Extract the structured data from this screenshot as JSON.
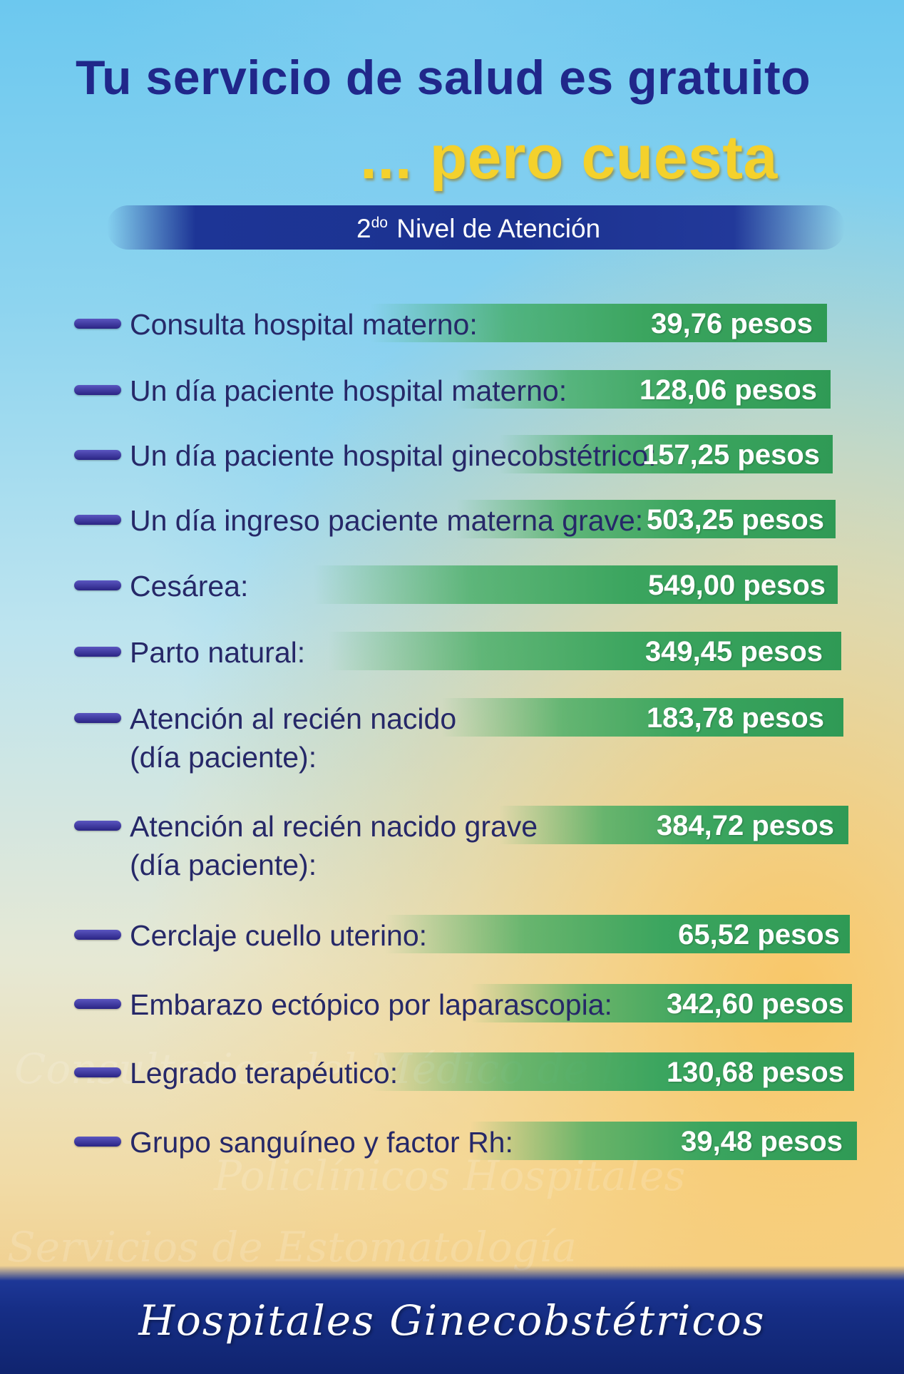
{
  "title": {
    "line1": "Tu servicio de salud es gratuito",
    "line2": "... pero cuesta"
  },
  "level": {
    "ordinal": "2",
    "suffix": "do",
    "text": "Nivel de Atención"
  },
  "items": [
    {
      "label": "Consulta hospital materno:",
      "price": "39,76 pesos"
    },
    {
      "label": "Un día paciente hospital materno:",
      "price": "128,06 pesos"
    },
    {
      "label": "Un día paciente hospital ginecobstétrico:",
      "price": "157,25 pesos"
    },
    {
      "label": "Un día ingreso paciente materna grave:",
      "price": "503,25 pesos"
    },
    {
      "label": "Cesárea:",
      "price": "549,00 pesos"
    },
    {
      "label": "Parto natural:",
      "price": "349,45 pesos"
    },
    {
      "label": "Atención al recién nacido",
      "label2": "(día paciente):",
      "price": "183,78 pesos"
    },
    {
      "label": "Atención al recién nacido grave",
      "label2": "(día paciente):",
      "price": "384,72 pesos"
    },
    {
      "label": "Cerclaje cuello uterino:",
      "price": "65,52 pesos"
    },
    {
      "label": "Embarazo ectópico por laparascopia:",
      "price": "342,60 pesos"
    },
    {
      "label": "Legrado terapéutico:",
      "price": "130,68 pesos"
    },
    {
      "label": "Grupo sanguíneo y factor Rh:",
      "price": "39,48 pesos"
    }
  ],
  "watermark": {
    "line1": "Consultorios del Médico de la Familia",
    "line2": "Policlínicos  Hospitales",
    "line3": "Servicios de Estomatología"
  },
  "footer": {
    "text": "Hospitales Ginecobstétricos"
  },
  "colors": {
    "title_blue": "#20278a",
    "title_yellow": "#f4d12c",
    "band_blue": "#1c3290",
    "bar_green": "#3ba55f",
    "label_text": "#262868"
  }
}
